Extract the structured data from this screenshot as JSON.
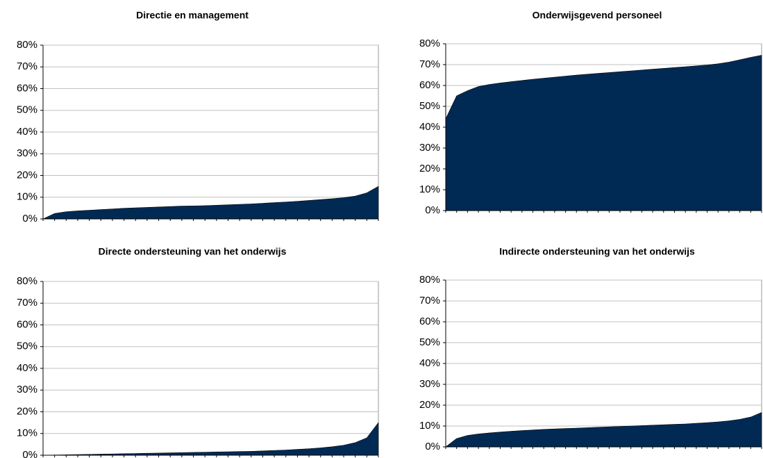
{
  "chart_data": [
    {
      "type": "area",
      "title": "Directie en management",
      "color": "#002a54",
      "grid": true,
      "categories": [
        null,
        null,
        null,
        null,
        null,
        null,
        null,
        null,
        null,
        null,
        null,
        null,
        null,
        null,
        null,
        null,
        null,
        null,
        null,
        null,
        null,
        null,
        null,
        null,
        null,
        null,
        null,
        null,
        null,
        null
      ],
      "values": [
        0,
        2.5,
        3.3,
        3.7,
        4,
        4.3,
        4.6,
        4.9,
        5.1,
        5.3,
        5.5,
        5.7,
        5.9,
        6,
        6.1,
        6.3,
        6.5,
        6.7,
        6.9,
        7.2,
        7.5,
        7.8,
        8.1,
        8.5,
        8.9,
        9.3,
        9.8,
        10.5,
        12,
        15
      ],
      "ylim": [
        0,
        80
      ],
      "yticks": [
        {
          "value": 0,
          "label": "0%"
        },
        {
          "value": 10,
          "label": "10%"
        },
        {
          "value": 20,
          "label": "20%"
        },
        {
          "value": 30,
          "label": "30%"
        },
        {
          "value": 40,
          "label": "40%"
        },
        {
          "value": 50,
          "label": "50%"
        },
        {
          "value": 60,
          "label": "60%"
        },
        {
          "value": 70,
          "label": "70%"
        },
        {
          "value": 80,
          "label": "80%"
        }
      ]
    },
    {
      "type": "area",
      "title": "Onderwijsgevend personeel",
      "color": "#002a54",
      "grid": true,
      "categories": [
        null,
        null,
        null,
        null,
        null,
        null,
        null,
        null,
        null,
        null,
        null,
        null,
        null,
        null,
        null,
        null,
        null,
        null,
        null,
        null,
        null,
        null,
        null,
        null,
        null,
        null,
        null,
        null,
        null,
        null
      ],
      "values": [
        44,
        55,
        57.5,
        59.5,
        60.5,
        61.2,
        61.8,
        62.4,
        63,
        63.5,
        64,
        64.5,
        65,
        65.4,
        65.8,
        66.2,
        66.6,
        67,
        67.4,
        67.8,
        68.2,
        68.6,
        69,
        69.4,
        69.8,
        70.4,
        71.2,
        72.3,
        73.5,
        74.5
      ],
      "ylim": [
        0,
        80
      ],
      "yticks": [
        {
          "value": 0,
          "label": "0%"
        },
        {
          "value": 10,
          "label": "10%"
        },
        {
          "value": 20,
          "label": "20%"
        },
        {
          "value": 30,
          "label": "30%"
        },
        {
          "value": 40,
          "label": "40%"
        },
        {
          "value": 50,
          "label": "50%"
        },
        {
          "value": 60,
          "label": "60%"
        },
        {
          "value": 70,
          "label": "70%"
        },
        {
          "value": 80,
          "label": "80%"
        }
      ]
    },
    {
      "type": "area",
      "title": "Directe ondersteuning van het onderwijs",
      "color": "#002a54",
      "grid": true,
      "categories": [
        null,
        null,
        null,
        null,
        null,
        null,
        null,
        null,
        null,
        null,
        null,
        null,
        null,
        null,
        null,
        null,
        null,
        null,
        null,
        null,
        null,
        null,
        null,
        null,
        null,
        null,
        null,
        null,
        null,
        null
      ],
      "values": [
        0,
        0.1,
        0.2,
        0.3,
        0.4,
        0.5,
        0.6,
        0.7,
        0.8,
        0.9,
        1,
        1.1,
        1.2,
        1.3,
        1.4,
        1.5,
        1.6,
        1.7,
        1.8,
        2,
        2.2,
        2.4,
        2.7,
        3,
        3.4,
        3.9,
        4.6,
        5.8,
        8,
        15
      ],
      "ylim": [
        0,
        80
      ],
      "yticks": [
        {
          "value": 0,
          "label": "0%"
        },
        {
          "value": 10,
          "label": "10%"
        },
        {
          "value": 20,
          "label": "20%"
        },
        {
          "value": 30,
          "label": "30%"
        },
        {
          "value": 40,
          "label": "40%"
        },
        {
          "value": 50,
          "label": "50%"
        },
        {
          "value": 60,
          "label": "60%"
        },
        {
          "value": 70,
          "label": "70%"
        },
        {
          "value": 80,
          "label": "80%"
        }
      ]
    },
    {
      "type": "area",
      "title": "Indirecte ondersteuning van het onderwijs",
      "color": "#002a54",
      "grid": true,
      "categories": [
        null,
        null,
        null,
        null,
        null,
        null,
        null,
        null,
        null,
        null,
        null,
        null,
        null,
        null,
        null,
        null,
        null,
        null,
        null,
        null,
        null,
        null,
        null,
        null,
        null,
        null,
        null,
        null,
        null,
        null
      ],
      "values": [
        0,
        4,
        5.5,
        6.2,
        6.7,
        7.1,
        7.5,
        7.8,
        8.1,
        8.4,
        8.6,
        8.8,
        9,
        9.2,
        9.4,
        9.6,
        9.8,
        10,
        10.2,
        10.4,
        10.6,
        10.8,
        11,
        11.3,
        11.6,
        12,
        12.5,
        13.2,
        14.3,
        16.5
      ],
      "ylim": [
        0,
        80
      ],
      "yticks": [
        {
          "value": 0,
          "label": "0%"
        },
        {
          "value": 10,
          "label": "10%"
        },
        {
          "value": 20,
          "label": "20%"
        },
        {
          "value": 30,
          "label": "30%"
        },
        {
          "value": 40,
          "label": "40%"
        },
        {
          "value": 50,
          "label": "50%"
        },
        {
          "value": 60,
          "label": "60%"
        },
        {
          "value": 70,
          "label": "70%"
        },
        {
          "value": 80,
          "label": "80%"
        }
      ]
    }
  ]
}
